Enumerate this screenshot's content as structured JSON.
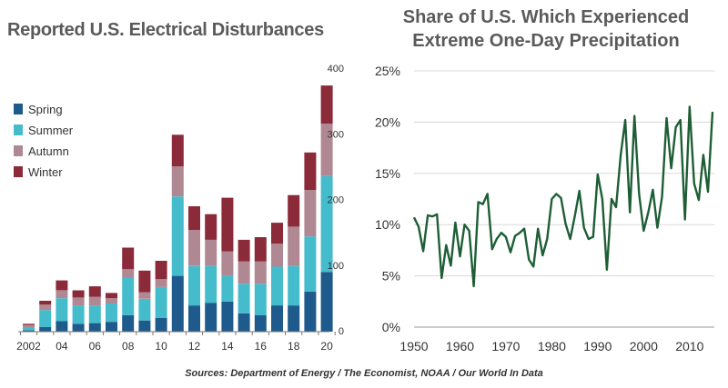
{
  "chart_data": [
    {
      "type": "bar",
      "stacked": true,
      "title": "Reported U.S. Electrical Disturbances",
      "categories": [
        "2002",
        "2003",
        "04",
        "2005",
        "06",
        "2007",
        "08",
        "2009",
        "10",
        "11",
        "12",
        "2013",
        "14",
        "2015",
        "16",
        "2017",
        "18",
        "2019",
        "20"
      ],
      "tick_labels": [
        "2002",
        "04",
        "06",
        "08",
        "10",
        "12",
        "14",
        "16",
        "18",
        "20"
      ],
      "series": [
        {
          "name": "Spring",
          "color": "#1f5a8c",
          "values": [
            2,
            7,
            16,
            12,
            13,
            15,
            25,
            17,
            21,
            85,
            40,
            44,
            46,
            28,
            25,
            40,
            40,
            61,
            91
          ]
        },
        {
          "name": "Summer",
          "color": "#45bccc",
          "values": [
            5,
            26,
            35,
            28,
            27,
            28,
            58,
            33,
            47,
            121,
            60,
            56,
            39,
            45,
            48,
            59,
            60,
            84,
            146
          ]
        },
        {
          "name": "Autumn",
          "color": "#b08894",
          "values": [
            3,
            8,
            12,
            12,
            13,
            8,
            12,
            10,
            12,
            46,
            55,
            40,
            37,
            34,
            34,
            35,
            60,
            71,
            80
          ]
        },
        {
          "name": "Winter",
          "color": "#8b2a38",
          "values": [
            2,
            6,
            15,
            11,
            16,
            8,
            33,
            33,
            28,
            48,
            36,
            39,
            82,
            33,
            37,
            32,
            48,
            57,
            58
          ]
        }
      ],
      "ylim": [
        0,
        400
      ],
      "yticks": [
        0,
        100,
        200,
        300,
        400
      ],
      "legend": "left"
    },
    {
      "type": "line",
      "title_lines": [
        "Share of U.S. Which Experienced",
        "Extreme One-Day Precipitation"
      ],
      "x": [
        1950,
        1951,
        1952,
        1953,
        1954,
        1955,
        1956,
        1957,
        1958,
        1959,
        1960,
        1961,
        1962,
        1963,
        1964,
        1965,
        1966,
        1967,
        1968,
        1969,
        1970,
        1971,
        1972,
        1973,
        1974,
        1975,
        1976,
        1977,
        1978,
        1979,
        1980,
        1981,
        1982,
        1983,
        1984,
        1985,
        1986,
        1987,
        1988,
        1989,
        1990,
        1991,
        1992,
        1993,
        1994,
        1995,
        1996,
        1997,
        1998,
        1999,
        2000,
        2001,
        2002,
        2003,
        2004,
        2005,
        2006,
        2007,
        2008,
        2009,
        2010,
        2011,
        2012,
        2013,
        2014,
        2015
      ],
      "y": [
        10.7,
        9.8,
        7.4,
        10.9,
        10.8,
        11.0,
        4.8,
        8.0,
        6.0,
        10.2,
        6.9,
        10.0,
        9.4,
        4.0,
        12.2,
        12.0,
        13.0,
        7.6,
        8.6,
        9.2,
        8.8,
        7.3,
        8.9,
        9.2,
        9.6,
        6.6,
        5.9,
        9.6,
        7.0,
        8.6,
        12.5,
        13.0,
        12.6,
        10.1,
        8.6,
        10.8,
        13.3,
        9.7,
        8.6,
        8.8,
        14.9,
        12.5,
        5.6,
        12.5,
        11.7,
        16.8,
        20.2,
        11.2,
        20.6,
        13.0,
        9.4,
        11.2,
        13.4,
        9.7,
        12.7,
        20.4,
        15.5,
        19.5,
        20.2,
        10.5,
        21.5,
        14.0,
        12.4,
        16.8,
        13.2,
        21.0
      ],
      "xticks": [
        1950,
        1960,
        1970,
        1980,
        1990,
        2000,
        2010
      ],
      "yticks": [
        "0%",
        "5%",
        "10%",
        "15%",
        "20%",
        "25%"
      ],
      "ylim": [
        0,
        25
      ],
      "color": "#1e5e35"
    }
  ],
  "sources": "Sources: Department of Energy / The Economist, NOAA / Our World In Data"
}
